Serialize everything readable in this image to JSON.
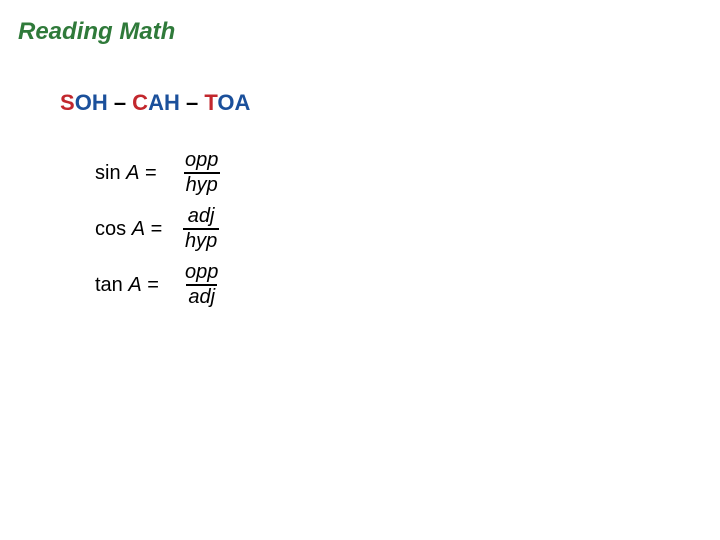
{
  "title": {
    "text": "Reading Math",
    "color": "#2f7a3a",
    "font_size": 24,
    "italic": true,
    "bold": true
  },
  "mnemonic": {
    "parts": [
      {
        "text": "S",
        "color": "#c2272d"
      },
      {
        "text": "O",
        "color": "#1b509b"
      },
      {
        "text": "H",
        "color": "#1b509b"
      },
      {
        "text": " – ",
        "color": "#000000"
      },
      {
        "text": "C",
        "color": "#c2272d"
      },
      {
        "text": "A",
        "color": "#1b509b"
      },
      {
        "text": "H",
        "color": "#1b509b"
      },
      {
        "text": " – ",
        "color": "#000000"
      },
      {
        "text": "T",
        "color": "#c2272d"
      },
      {
        "text": "O",
        "color": "#1b509b"
      },
      {
        "text": "A",
        "color": "#1b509b"
      }
    ],
    "font_size": 22,
    "bold": true
  },
  "equations": [
    {
      "fn": "sin",
      "var": "A",
      "eq": " = ",
      "num": "opp",
      "den": "hyp"
    },
    {
      "fn": "cos",
      "var": "A",
      "eq": " = ",
      "num": "adj",
      "den": "hyp"
    },
    {
      "fn": "tan",
      "var": "A",
      "eq": " = ",
      "num": "opp",
      "den": "adj"
    }
  ],
  "style": {
    "background": "#ffffff",
    "text_color": "#000000",
    "eq_font_size": 20,
    "fraction_bar_color": "#000000",
    "fraction_bar_width": 2
  }
}
